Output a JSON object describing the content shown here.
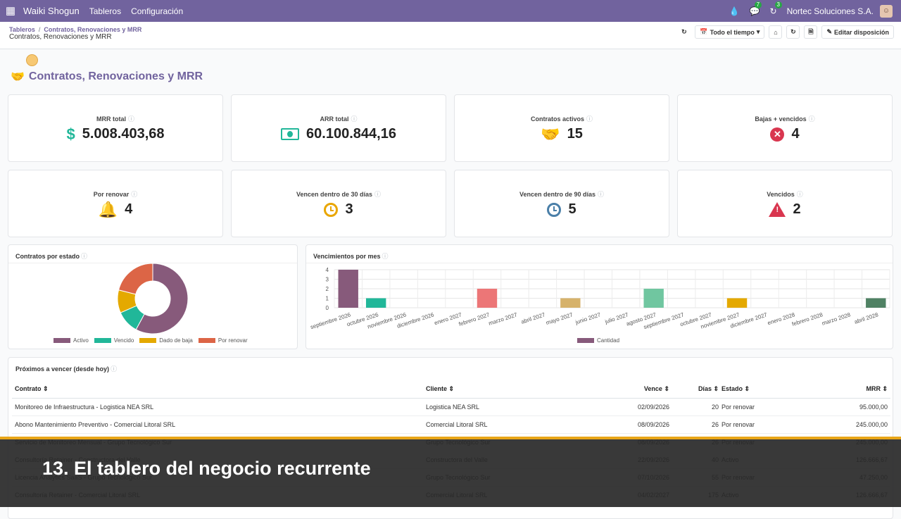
{
  "nav": {
    "brand": "Waiki Shogun",
    "menu": [
      "Tableros",
      "Configuración"
    ],
    "badge_messages": "7",
    "badge_activities": "3",
    "company": "Nortec Soluciones S.A."
  },
  "breadcrumb": {
    "root": "Tableros",
    "current": "Contratos, Renovaciones y MRR",
    "subtitle": "Contratos, Renovaciones y MRR"
  },
  "controls": {
    "period": "Todo el tiempo",
    "edit_layout": "Editar disposición"
  },
  "page_title": "Contratos, Renovaciones y MRR",
  "kpis": [
    {
      "label": "MRR total",
      "value": "5.008.403,68",
      "icon": "dollar-icon",
      "color": "#21b799"
    },
    {
      "label": "ARR total",
      "value": "60.100.844,16",
      "icon": "money-bill-icon",
      "color": "#21b799"
    },
    {
      "label": "Contratos activos",
      "value": "15",
      "icon": "handshake-icon",
      "color": "#4a7fa8"
    },
    {
      "label": "Bajas + vencidos",
      "value": "4",
      "icon": "times-circle-icon",
      "color": "#d9364f"
    },
    {
      "label": "Por renovar",
      "value": "4",
      "icon": "bell-icon",
      "color": "#e9a602"
    },
    {
      "label": "Vencen dentro de 30 días",
      "value": "3",
      "icon": "clock-icon",
      "color": "#e9a602"
    },
    {
      "label": "Vencen dentro de 90 días",
      "value": "5",
      "icon": "clock-icon",
      "color": "#4a7fa8"
    },
    {
      "label": "Vencidos",
      "value": "2",
      "icon": "warning-icon",
      "color": "#d9364f"
    }
  ],
  "chart_data": [
    {
      "type": "pie",
      "title": "Contratos por estado",
      "categories": [
        "Activo",
        "Vencido",
        "Dado de baja",
        "Por renovar"
      ],
      "values": [
        11,
        2,
        2,
        4
      ],
      "colors": [
        "#875a7b",
        "#21b799",
        "#e4a900",
        "#dc6546"
      ],
      "legend": "bottom"
    },
    {
      "type": "bar",
      "title": "Vencimientos por mes",
      "categories": [
        "septiembre 2026",
        "octubre 2026",
        "noviembre 2026",
        "diciembre 2026",
        "enero 2027",
        "febrero 2027",
        "marzo 2027",
        "abril 2027",
        "mayo 2027",
        "junio 2027",
        "julio 2027",
        "agosto 2027",
        "septiembre 2027",
        "octubre 2027",
        "noviembre 2027",
        "diciembre 2027",
        "enero 2028",
        "febrero 2028",
        "marzo 2028",
        "abril 2028"
      ],
      "values": [
        4,
        1,
        0,
        0,
        0,
        2,
        0,
        0,
        1,
        0,
        0,
        2,
        0,
        0,
        1,
        0,
        0,
        0,
        0,
        1
      ],
      "bar_colors": [
        "#875a7b",
        "#21b799",
        "#875a7b",
        "#875a7b",
        "#875a7b",
        "#ec7677",
        "#875a7b",
        "#875a7b",
        "#d6b26b",
        "#875a7b",
        "#875a7b",
        "#70c6a0",
        "#875a7b",
        "#875a7b",
        "#e4a900",
        "#875a7b",
        "#875a7b",
        "#875a7b",
        "#875a7b",
        "#4f8163"
      ],
      "series": [
        {
          "name": "Cantidad",
          "color": "#875a7b"
        }
      ],
      "ylim": [
        0,
        4
      ],
      "yticks": [
        0,
        1,
        2,
        3,
        4
      ],
      "grid": true,
      "legend": "bottom"
    }
  ],
  "table": {
    "title": "Próximos a vencer (desde hoy)",
    "columns": [
      "Contrato",
      "Cliente",
      "Vence",
      "Días",
      "Estado",
      "MRR"
    ],
    "rows": [
      [
        "Monitoreo de Infraestructura - Logistica NEA SRL",
        "Logistica NEA SRL",
        "02/09/2026",
        "20",
        "Por renovar",
        "95.000,00"
      ],
      [
        "Abono Mantenimiento Preventivo - Comercial Litoral SRL",
        "Comercial Litoral SRL",
        "08/09/2026",
        "26",
        "Por renovar",
        "245.000,00"
      ],
      [
        "Servicio de Monitoreo Mensual - Grupo Tecnológico Sur",
        "Grupo Tecnológico Sur",
        "08/09/2026",
        "26",
        "Por renovar",
        "245.000,00"
      ],
      [
        "Consultoría Retainer - Constructora del Valle",
        "Constructora del Valle",
        "22/09/2026",
        "40",
        "Activo",
        "126.666,67"
      ],
      [
        "Licencia Analytics SaaS - Grupo Tecnológico Sur",
        "Grupo Tecnológico Sur",
        "07/10/2026",
        "55",
        "Por renovar",
        "47.250,00"
      ],
      [
        "Consultoría Retainer - Comercial Litoral SRL",
        "Comercial Litoral SRL",
        "04/02/2027",
        "175",
        "Activo",
        "126.666,67"
      ]
    ]
  },
  "caption": "13. El tablero del negocio recurrente"
}
